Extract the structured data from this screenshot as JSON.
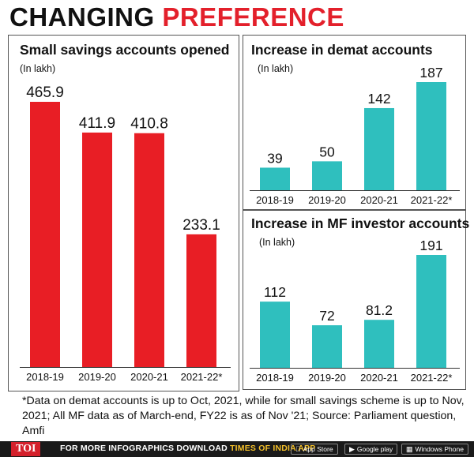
{
  "headline": {
    "word1": "CHANGING",
    "word2": "PREFERENCE"
  },
  "colors": {
    "red": "#e81e25",
    "teal": "#2fbfbe",
    "headline_red": "#e3202b"
  },
  "chart_data": [
    {
      "type": "bar",
      "title": "Small savings accounts opened",
      "unit": "(In lakh)",
      "categories": [
        "2018-19",
        "2019-20",
        "2020-21",
        "2021-22*"
      ],
      "values": [
        465.9,
        411.9,
        410.8,
        233.1
      ],
      "value_labels": [
        "465.9",
        "411.9",
        "410.8",
        "233.1"
      ],
      "color": "#e81e25"
    },
    {
      "type": "bar",
      "title": "Increase in demat accounts",
      "unit": "(In lakh)",
      "categories": [
        "2018-19",
        "2019-20",
        "2020-21",
        "2021-22*"
      ],
      "values": [
        39,
        50,
        142,
        187
      ],
      "value_labels": [
        "39",
        "50",
        "142",
        "187"
      ],
      "color": "#2fbfbe"
    },
    {
      "type": "bar",
      "title": "Increase in MF investor accounts",
      "unit": "(In lakh)",
      "categories": [
        "2018-19",
        "2019-20",
        "2020-21",
        "2021-22*"
      ],
      "values": [
        112,
        72,
        81.2,
        191
      ],
      "value_labels": [
        "112",
        "72",
        "81.2",
        "191"
      ],
      "color": "#2fbfbe"
    }
  ],
  "footnote": "*Data on demat accounts is up to Oct, 2021, while for small savings scheme is up to Nov, 2021; All MF data as of March-end, FY22 is as of Nov '21; Source: Parliament question, Amfi",
  "bottom_bar": {
    "logo": "TOI",
    "promo_text": "FOR MORE  INFOGRAPHICS DOWNLOAD",
    "promo_app": "TIMES OF INDIA APP",
    "stores": [
      {
        "label": "App Store",
        "icon": "apple-icon"
      },
      {
        "label": "Google play",
        "icon": "play-icon"
      },
      {
        "label": "Windows Phone",
        "icon": "windows-icon"
      }
    ]
  }
}
